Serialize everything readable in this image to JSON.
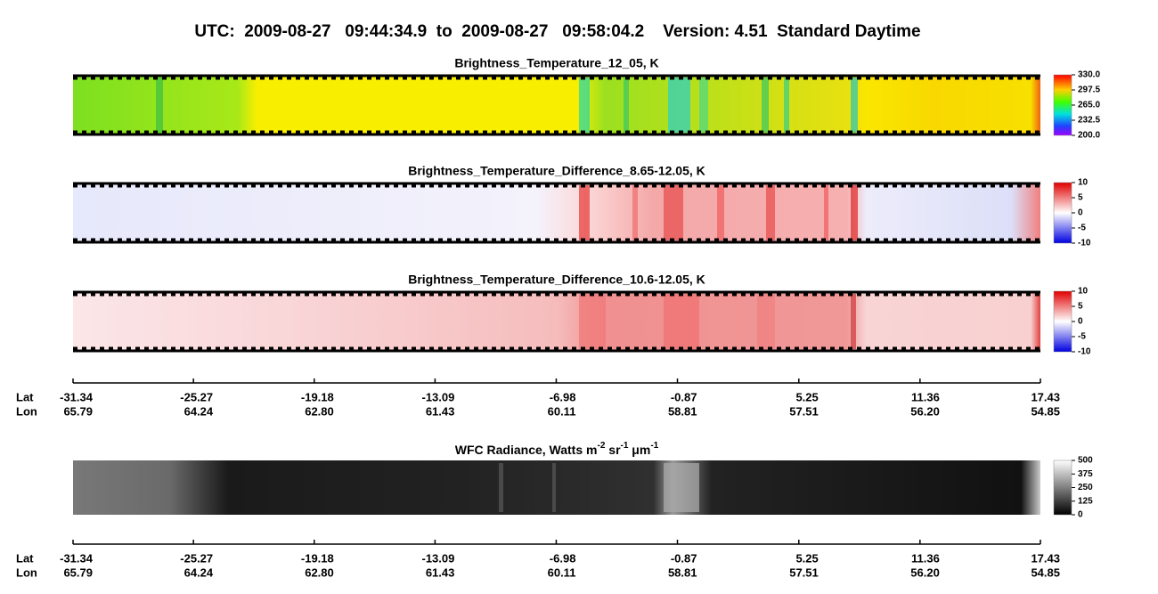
{
  "header": {
    "title": "UTC:  2009-08-27   09:44:34.9  to  2009-08-27   09:58:04.2    Version: 4.51  Standard Daytime"
  },
  "panels": [
    {
      "title": "Brightness_Temperature_12_05, K",
      "colorbar_ticks": [
        {
          "value": 330,
          "label": "330.0"
        },
        {
          "value": 297.5,
          "label": "297.5"
        },
        {
          "value": 265,
          "label": "265.0"
        },
        {
          "value": 232.5,
          "label": "232.5"
        },
        {
          "value": 200,
          "label": "200.0"
        }
      ]
    },
    {
      "title": "Brightness_Temperature_Difference_8.65-12.05, K",
      "colorbar_ticks": [
        10,
        5,
        0,
        -5,
        -10
      ]
    },
    {
      "title": "Brightness_Temperature_Difference_10.6-12.05, K",
      "colorbar_ticks": [
        10,
        5,
        0,
        -5,
        -10
      ]
    },
    {
      "title_parts": [
        "WFC Radiance, Watts m",
        "-2",
        " sr",
        "-1",
        " μm",
        "-1"
      ],
      "colorbar_ticks": [
        500,
        375,
        250,
        125,
        0
      ]
    }
  ],
  "axis": {
    "lat_label": "Lat",
    "lon_label": "Lon",
    "lat": [
      -31.34,
      -25.27,
      -19.18,
      -13.09,
      -6.98,
      -0.87,
      5.25,
      11.36,
      17.43
    ],
    "lon": [
      65.79,
      64.24,
      62.8,
      61.43,
      60.11,
      58.81,
      57.51,
      56.2,
      54.85
    ],
    "lon_labels": [
      "65.79",
      "64.24",
      "62.80",
      "61.43",
      "60.11",
      "58.81",
      "57.51",
      "56.20",
      "54.85"
    ]
  }
}
